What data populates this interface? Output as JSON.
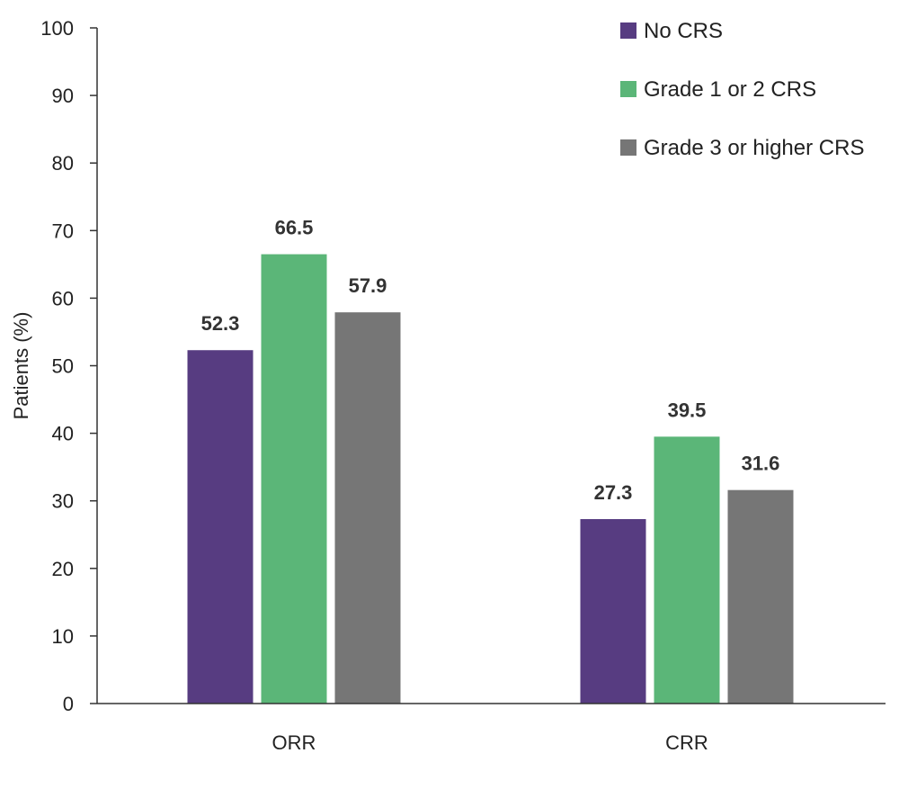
{
  "chart_data": {
    "type": "bar",
    "title": "",
    "xlabel": "",
    "ylabel": "Patients (%)",
    "ylim": [
      0,
      100
    ],
    "yticks": [
      0,
      10,
      20,
      30,
      40,
      50,
      60,
      70,
      80,
      90,
      100
    ],
    "categories": [
      "ORR",
      "CRR"
    ],
    "series": [
      {
        "name": "No CRS",
        "color": "#573c81",
        "values": [
          52.3,
          27.3
        ]
      },
      {
        "name": "Grade 1 or 2 CRS",
        "color": "#5bb678",
        "values": [
          66.5,
          39.5
        ]
      },
      {
        "name": "Grade 3 or higher CRS",
        "color": "#767676",
        "values": [
          57.9,
          31.6
        ]
      }
    ],
    "legend_position": "top-right",
    "grid": false
  }
}
